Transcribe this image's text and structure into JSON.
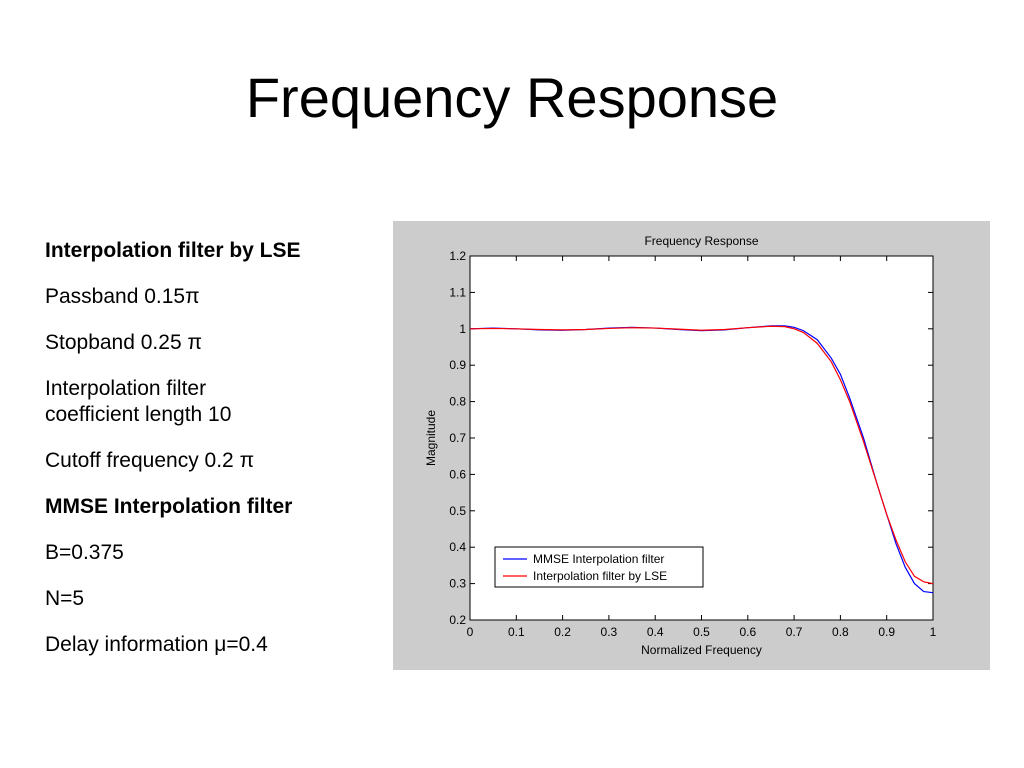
{
  "slide": {
    "title": "Frequency Response",
    "items": [
      {
        "text": "Interpolation filter by LSE",
        "bold": true
      },
      {
        "text": "Passband 0.15π",
        "bold": false
      },
      {
        "text": "Stopband 0.25 π",
        "bold": false
      },
      {
        "text": "Interpolation filter coefficient length 10",
        "bold": false
      },
      {
        "text": "Cutoff frequency 0.2 π",
        "bold": false
      },
      {
        "text": "MMSE Interpolation filter",
        "bold": true
      },
      {
        "text": "B=0.375",
        "bold": false
      },
      {
        "text": "N=5",
        "bold": false
      },
      {
        "text": "Delay information μ=0.4",
        "bold": false
      }
    ]
  },
  "chart_data": {
    "type": "line",
    "title": "Frequency Response",
    "xlabel": "Normalized Frequency",
    "ylabel": "Magnitude",
    "xlim": [
      0,
      1
    ],
    "ylim": [
      0.2,
      1.2
    ],
    "xticks": [
      "0",
      "0.1",
      "0.2",
      "0.3",
      "0.4",
      "0.5",
      "0.6",
      "0.7",
      "0.8",
      "0.9",
      "1"
    ],
    "yticks": [
      "0.2",
      "0.3",
      "0.4",
      "0.5",
      "0.6",
      "0.7",
      "0.8",
      "0.9",
      "1",
      "1.1",
      "1.2"
    ],
    "grid": false,
    "legend_position": "bottom-left",
    "background_color": "#cccccc",
    "series": [
      {
        "name": "MMSE Interpolation filter",
        "color": "#0000ff",
        "x": [
          0,
          0.05,
          0.1,
          0.15,
          0.2,
          0.25,
          0.3,
          0.35,
          0.4,
          0.45,
          0.5,
          0.55,
          0.6,
          0.65,
          0.68,
          0.7,
          0.72,
          0.75,
          0.78,
          0.8,
          0.82,
          0.85,
          0.88,
          0.9,
          0.92,
          0.94,
          0.96,
          0.98,
          1.0
        ],
        "y": [
          1.0,
          1.002,
          1.0,
          0.997,
          0.996,
          0.998,
          1.002,
          1.004,
          1.002,
          0.998,
          0.995,
          0.997,
          1.003,
          1.008,
          1.008,
          1.004,
          0.995,
          0.97,
          0.92,
          0.875,
          0.81,
          0.7,
          0.57,
          0.49,
          0.41,
          0.345,
          0.3,
          0.278,
          0.275
        ]
      },
      {
        "name": "Interpolation filter by LSE",
        "color": "#ff0000",
        "x": [
          0,
          0.05,
          0.1,
          0.15,
          0.2,
          0.25,
          0.3,
          0.35,
          0.4,
          0.45,
          0.5,
          0.55,
          0.6,
          0.65,
          0.68,
          0.7,
          0.72,
          0.75,
          0.78,
          0.8,
          0.82,
          0.85,
          0.88,
          0.9,
          0.92,
          0.94,
          0.96,
          0.98,
          1.0
        ],
        "y": [
          1.0,
          1.001,
          1.0,
          0.998,
          0.997,
          0.998,
          1.001,
          1.003,
          1.002,
          0.999,
          0.996,
          0.998,
          1.003,
          1.007,
          1.006,
          1.0,
          0.99,
          0.96,
          0.91,
          0.86,
          0.8,
          0.69,
          0.57,
          0.49,
          0.42,
          0.36,
          0.32,
          0.305,
          0.3
        ]
      }
    ]
  }
}
